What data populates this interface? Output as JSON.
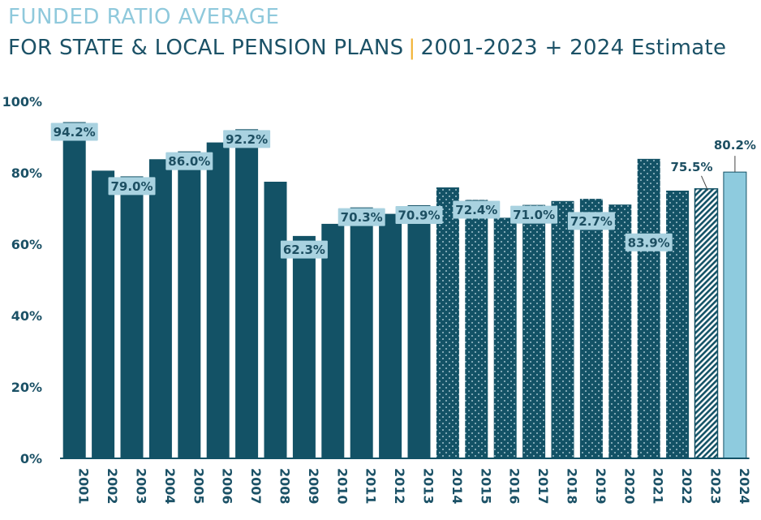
{
  "chart_data": {
    "type": "bar",
    "title": "FUNDED RATIO AVERAGE",
    "subtitle": {
      "main": "FOR STATE & LOCAL PENSION PLANS",
      "separator": "|",
      "range": "2001-2023 + 2024 Estimate"
    },
    "xlabel": "",
    "ylabel": "",
    "ylim": [
      0,
      100
    ],
    "y_ticks": [
      0,
      20,
      40,
      60,
      80,
      100
    ],
    "y_tick_labels": [
      "0%",
      "20%",
      "40%",
      "60%",
      "80%",
      "100%"
    ],
    "categories": [
      "2001",
      "2002",
      "2003",
      "2004",
      "2005",
      "2006",
      "2007",
      "2008",
      "2009",
      "2010",
      "2011",
      "2012",
      "2013",
      "2014",
      "2015",
      "2016",
      "2017",
      "2018",
      "2019",
      "2020",
      "2021",
      "2022",
      "2023",
      "2024"
    ],
    "values": [
      94.2,
      80.6,
      79.0,
      83.8,
      86.0,
      88.5,
      92.2,
      77.5,
      62.3,
      65.7,
      70.3,
      68.5,
      70.9,
      75.9,
      72.4,
      67.4,
      71.0,
      72.1,
      72.7,
      71.1,
      83.9,
      75.0,
      75.5,
      80.2
    ],
    "bar_styles": [
      "solid",
      "solid",
      "solid",
      "solid",
      "solid",
      "solid",
      "solid",
      "solid",
      "solid",
      "solid",
      "solid",
      "solid",
      "solid",
      "dotted",
      "dotted",
      "dotted",
      "dotted",
      "dotted",
      "dotted",
      "dotted",
      "dotted",
      "dotted",
      "hatched",
      "estimate"
    ],
    "labels": [
      {
        "index": 0,
        "text": "94.2%",
        "style": "box"
      },
      {
        "index": 2,
        "text": "79.0%",
        "style": "box"
      },
      {
        "index": 4,
        "text": "86.0%",
        "style": "box"
      },
      {
        "index": 6,
        "text": "92.2%",
        "style": "box"
      },
      {
        "index": 8,
        "text": "62.3%",
        "style": "box"
      },
      {
        "index": 10,
        "text": "70.3%",
        "style": "box"
      },
      {
        "index": 12,
        "text": "70.9%",
        "style": "box"
      },
      {
        "index": 14,
        "text": "72.4%",
        "style": "box"
      },
      {
        "index": 16,
        "text": "71.0%",
        "style": "box"
      },
      {
        "index": 18,
        "text": "72.7%",
        "style": "box"
      },
      {
        "index": 20,
        "text": "83.9%",
        "style": "box"
      },
      {
        "index": 22,
        "text": "75.5%",
        "style": "callout"
      },
      {
        "index": 23,
        "text": "80.2%",
        "style": "callout"
      }
    ],
    "colors": {
      "bar": "#135266",
      "estimate": "#8ecbde",
      "label_box": "#a9d2e0",
      "label_text": "#1d4f62",
      "title_light": "#8fc9dc",
      "title_dark": "#1b5166",
      "separator": "#f2b233",
      "axis_text": "#1b5166"
    }
  }
}
